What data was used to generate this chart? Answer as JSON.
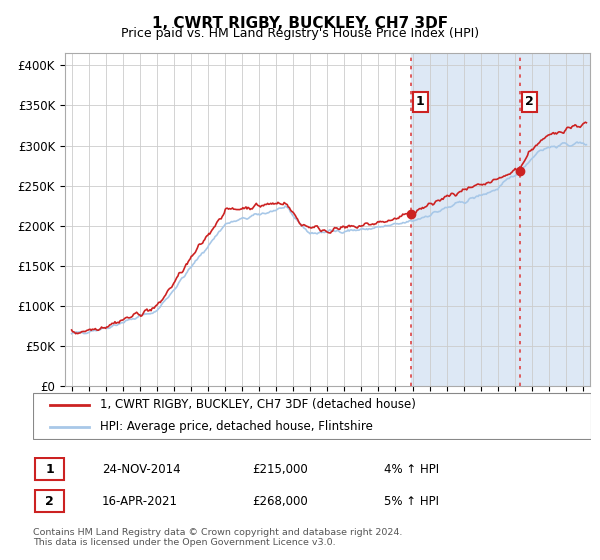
{
  "title": "1, CWRT RIGBY, BUCKLEY, CH7 3DF",
  "subtitle": "Price paid vs. HM Land Registry's House Price Index (HPI)",
  "ylabel_ticks": [
    "£0",
    "£50K",
    "£100K",
    "£150K",
    "£200K",
    "£250K",
    "£300K",
    "£350K",
    "£400K"
  ],
  "ytick_values": [
    0,
    50000,
    100000,
    150000,
    200000,
    250000,
    300000,
    350000,
    400000
  ],
  "ylim": [
    0,
    415000
  ],
  "xlim_start": 1994.6,
  "xlim_end": 2025.4,
  "hpi_color": "#a8c8e8",
  "price_color": "#cc2222",
  "sale1_x": 2014.9,
  "sale1_y": 215000,
  "sale2_x": 2021.3,
  "sale2_y": 268000,
  "sale1_label": "1",
  "sale2_label": "2",
  "vline_color": "#dd4444",
  "legend_line1": "1, CWRT RIGBY, BUCKLEY, CH7 3DF (detached house)",
  "legend_line2": "HPI: Average price, detached house, Flintshire",
  "table_row1_num": "1",
  "table_row1_date": "24-NOV-2014",
  "table_row1_price": "£215,000",
  "table_row1_hpi": "4% ↑ HPI",
  "table_row2_num": "2",
  "table_row2_date": "16-APR-2021",
  "table_row2_price": "£268,000",
  "table_row2_hpi": "5% ↑ HPI",
  "footnote1": "Contains HM Land Registry data © Crown copyright and database right 2024.",
  "footnote2": "This data is licensed under the Open Government Licence v3.0.",
  "bg_highlight_color": "#dde8f5",
  "shade_start": 2014.9,
  "shade_end": 2025.4
}
